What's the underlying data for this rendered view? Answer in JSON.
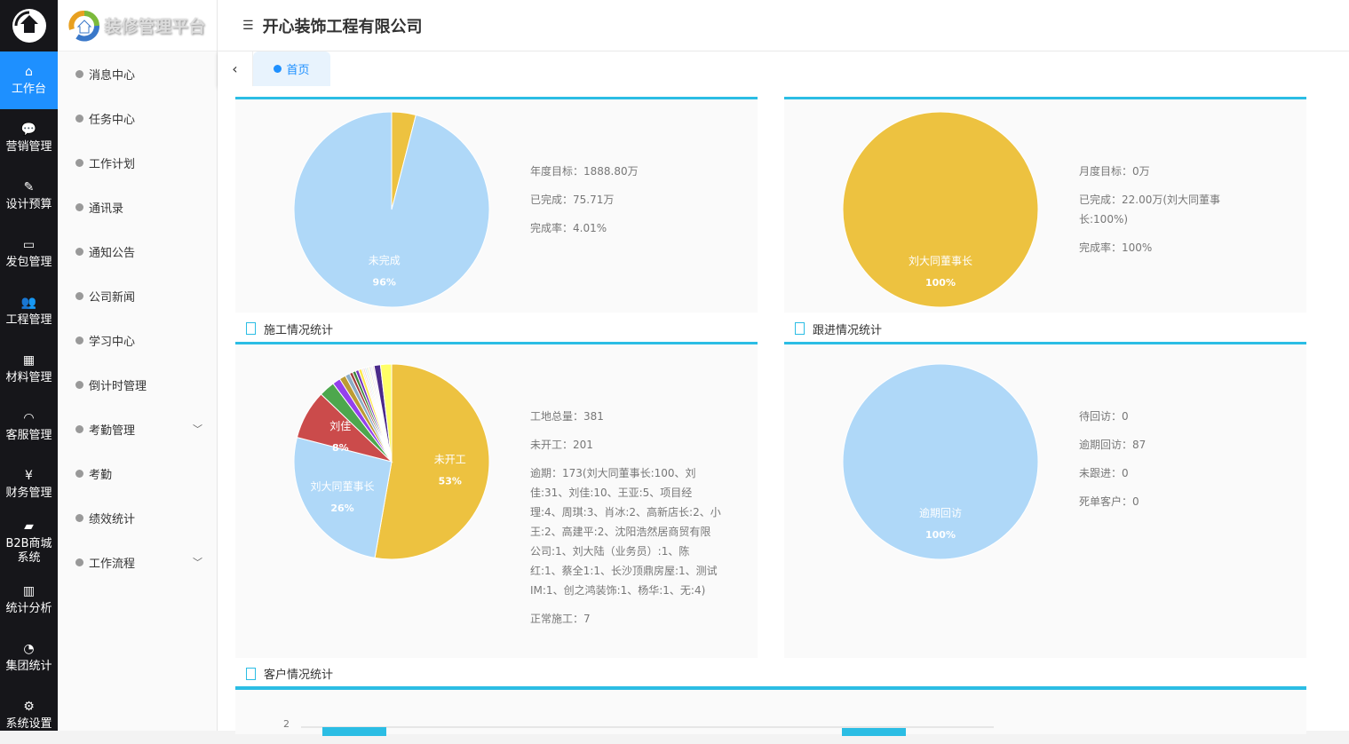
{
  "nav": {
    "items": [
      {
        "label": "工作台",
        "icon": "home-icon",
        "glyph": "⌂",
        "active": true
      },
      {
        "label": "营销管理",
        "icon": "chat-icon",
        "glyph": "💬"
      },
      {
        "label": "设计预算",
        "icon": "edit-icon",
        "glyph": "✎"
      },
      {
        "label": "发包管理",
        "icon": "monitor-icon",
        "glyph": "▭"
      },
      {
        "label": "工程管理",
        "icon": "users-icon",
        "glyph": "👥"
      },
      {
        "label": "材料管理",
        "icon": "grid-icon",
        "glyph": "▦"
      },
      {
        "label": "客服管理",
        "icon": "headset-icon",
        "glyph": "◠"
      },
      {
        "label": "财务管理",
        "icon": "yen-icon",
        "glyph": "¥"
      },
      {
        "label": "B2B商城系统",
        "icon": "bag-icon",
        "glyph": "▰"
      },
      {
        "label": "统计分析",
        "icon": "bar-chart-icon",
        "glyph": "▥"
      },
      {
        "label": "集团统计",
        "icon": "pie-chart-icon",
        "glyph": "◔"
      },
      {
        "label": "系统设置",
        "icon": "gear-icon",
        "glyph": "⚙"
      }
    ]
  },
  "brand": {
    "name": "装修管理平台"
  },
  "submenu": [
    {
      "label": "消息中心"
    },
    {
      "label": "任务中心"
    },
    {
      "label": "工作计划"
    },
    {
      "label": "通讯录"
    },
    {
      "label": "通知公告"
    },
    {
      "label": "公司新闻"
    },
    {
      "label": "学习中心"
    },
    {
      "label": "倒计时管理"
    },
    {
      "label": "考勤管理",
      "expandable": true
    },
    {
      "label": "考勤"
    },
    {
      "label": "绩效统计"
    },
    {
      "label": "工作流程",
      "expandable": true
    }
  ],
  "header": {
    "title": "开心装饰工程有限公司"
  },
  "tabs": [
    {
      "label": "首页",
      "active": true
    }
  ],
  "panels": {
    "annual": {
      "lines": [
        "年度目标：1888.80万",
        "已完成：75.71万",
        "完成率：4.01%"
      ]
    },
    "monthly": {
      "lines": [
        "月度目标：0万",
        "已完成：22.00万(刘大同董事长:100%)",
        "完成率：100%"
      ]
    },
    "construction": {
      "title": "施工情况统计",
      "lines": [
        "工地总量：381",
        "未开工：201",
        "逾期：173(刘大同董事长:100、刘佳:31、刘佳:10、王亚:5、项目经理:4、周琪:3、肖冰:2、高新店长:2、小王:2、高建平:2、沈阳浩然居商贸有限公司:1、刘大陆（业务员）:1、陈红:1、蔡全1:1、长沙顶鼎房屋:1、测试IM:1、创之鸿装饰:1、杨华:1、无:4)",
        "正常施工：7"
      ]
    },
    "followup": {
      "title": "跟进情况统计",
      "lines": [
        "待回访：0",
        "逾期回访：87",
        "未跟进：0",
        "死单客户：0"
      ]
    },
    "customer": {
      "title": "客户情况统计",
      "ytick": "2"
    }
  },
  "colors": {
    "accent": "#2bbde4",
    "active": "#1e90ff",
    "yellow": "#edc240",
    "lightblue": "#afd8f8",
    "red": "#cb4b4b"
  },
  "chart_data": [
    {
      "type": "pie",
      "slices": [
        {
          "name": "已完成",
          "value": 4,
          "color": "#edc240"
        },
        {
          "name": "未完成",
          "value": 96,
          "color": "#afd8f8",
          "label": "未完成",
          "pct": "96%"
        }
      ]
    },
    {
      "type": "pie",
      "slices": [
        {
          "name": "刘大同董事长",
          "value": 100,
          "color": "#edc240",
          "label": "刘大同董事长",
          "pct": "100%"
        }
      ]
    },
    {
      "type": "pie",
      "slices": [
        {
          "name": "未开工",
          "value": 201,
          "color": "#edc240",
          "label": "未开工",
          "pct": "53%"
        },
        {
          "name": "刘大同董事长",
          "value": 100,
          "color": "#afd8f8",
          "label": "刘大同董事长",
          "pct": "26%"
        },
        {
          "name": "刘佳",
          "value": 31,
          "color": "#cb4b4b",
          "label": "刘佳",
          "pct": "8%"
        },
        {
          "name": "刘佳",
          "value": 10,
          "color": "#4da74d"
        },
        {
          "name": "王亚",
          "value": 5,
          "color": "#9440ed"
        },
        {
          "name": "项目经理",
          "value": 4,
          "color": "#bd9b33"
        },
        {
          "name": "周琪",
          "value": 3,
          "color": "#8cacc6"
        },
        {
          "name": "肖冰",
          "value": 2,
          "color": "#a23c3c"
        },
        {
          "name": "高新店长",
          "value": 2,
          "color": "#3d853d"
        },
        {
          "name": "小王",
          "value": 2,
          "color": "#7633bd"
        },
        {
          "name": "高建平",
          "value": 2,
          "color": "#ffe84c"
        },
        {
          "name": "沈阳浩然居商贸有限公司",
          "value": 1,
          "color": "#dfdfdf"
        },
        {
          "name": "刘大陆（业务员）",
          "value": 1,
          "color": "#f4cccc"
        },
        {
          "name": "陈红",
          "value": 1,
          "color": "#cfe2f3"
        },
        {
          "name": "蔡全1",
          "value": 1,
          "color": "#d9ead3"
        },
        {
          "name": "长沙顶鼎房屋",
          "value": 1,
          "color": "#fff2cc"
        },
        {
          "name": "测试IM",
          "value": 1,
          "color": "#d9d2e9"
        },
        {
          "name": "创之鸿装饰",
          "value": 1,
          "color": "#eeeeee"
        },
        {
          "name": "杨华",
          "value": 1,
          "color": "#ead1dc"
        },
        {
          "name": "无",
          "value": 4,
          "color": "#4b2a8a"
        },
        {
          "name": "正常施工",
          "value": 7,
          "color": "#ffff66"
        }
      ]
    },
    {
      "type": "pie",
      "slices": [
        {
          "name": "逾期回访",
          "value": 87,
          "color": "#afd8f8",
          "label": "逾期回访",
          "pct": "100%"
        }
      ]
    }
  ]
}
